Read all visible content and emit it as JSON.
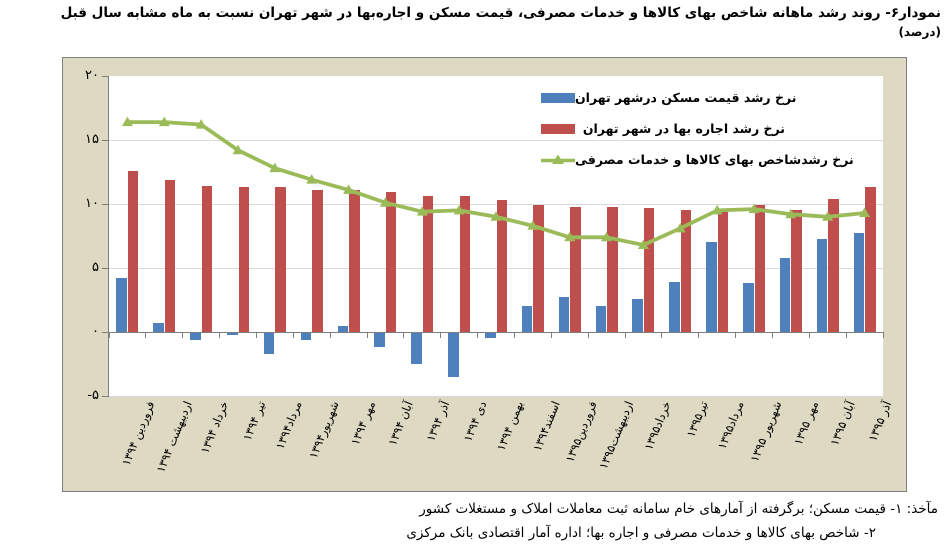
{
  "title": {
    "main": "نمودار۶- روند رشد ماهانه شاخص بهای کالاها و خدمات مصرفی، قیمت مسکن و اجاره‌بها در شهر تهران نسبت به ماه مشابه سال قبل ",
    "unit": "(درصد)"
  },
  "footnotes": {
    "line1": "مآخذ: ۱- قیمت مسکن؛ برگرفته از آمارهای خام سامانه ثبت معاملات املاک و مستغلات کشور",
    "line2": "۲- شاخص بهای کالاها و خدمات مصرفی و اجاره بها؛ اداره آمار اقتصادی بانک مرکزی"
  },
  "colors": {
    "chart_background": "#ddd9c3",
    "plot_background": "#ffffff",
    "frame_border": "#7f7f7f",
    "gridline": "#d9d9d9",
    "axis_line": "#7f7f7f",
    "house_price_bar": "#4e80bc",
    "rent_bar": "#bf4f4c",
    "cpi_line": "#9bbb59"
  },
  "y_axis": {
    "tick_labels": [
      "۲۰",
      "۱۵",
      "۱۰",
      "۵",
      "۰",
      "-۵"
    ],
    "tick_values": [
      20,
      15,
      10,
      5,
      0,
      -5
    ]
  },
  "chart_data": {
    "type": "bar",
    "subtype": "grouped bars + line overlay",
    "title": "نمودار۶- روند رشد ماهانه شاخص بهای کالاها و خدمات مصرفی، قیمت مسکن و اجاره‌بها در شهر تهران نسبت به ماه مشابه سال قبل (درصد)",
    "xlabel": "",
    "ylabel": "",
    "ylim": [
      -5,
      20
    ],
    "ytick_step": 5,
    "grid": true,
    "legend_position": "inside-top-right",
    "categories": [
      "فروردین ۱۳۹۴",
      "اردیبهشت ۱۳۹۴",
      "خرداد ۱۳۹۴",
      "تیر ۱۳۹۴",
      "مرداد۱۳۹۴",
      "شهریور۱۳۹۴",
      "مهر ۱۳۹۴",
      "آبان ۱۳۹۴",
      "آذر ۱۳۹۴",
      "دی ۱۳۹۴",
      "بهمن ۱۳۹۴",
      "اسفند۱۳۹۴",
      "فروردین۱۳۹۵",
      "اردیبهشت۱۳۹۵",
      "خرداد۱۳۹۵",
      "تیر۱۳۹۵",
      "مرداد۱۳۹۵",
      "شهریور ۱۳۹۵",
      "مهر ۱۳۹۵",
      "آبان ۱۳۹۵",
      "آذر ۱۳۹۵"
    ],
    "series": [
      {
        "name": "نرخ رشد قیمت مسکن  درشهر تهران",
        "type": "bar",
        "color": "#4e80bc",
        "values": [
          4.2,
          0.7,
          -0.6,
          -0.2,
          -1.7,
          -0.6,
          0.5,
          -1.2,
          -2.5,
          -3.5,
          -0.5,
          2.0,
          2.7,
          2.0,
          2.6,
          3.9,
          7.0,
          3.8,
          5.8,
          7.3,
          7.7
        ]
      },
      {
        "name": "نرخ رشد اجاره بها در شهر تهران",
        "type": "bar",
        "color": "#bf4f4c",
        "values": [
          12.6,
          11.9,
          11.4,
          11.3,
          11.3,
          11.1,
          11.1,
          10.9,
          10.6,
          10.6,
          10.3,
          9.9,
          9.8,
          9.8,
          9.7,
          9.5,
          9.4,
          9.9,
          9.5,
          10.4,
          11.3
        ]
      },
      {
        "name": "نرخ رشدشاخص بهای کالاها و خدمات مصرفی",
        "type": "line",
        "marker": "triangle-up",
        "color": "#9bbb59",
        "values": [
          16.4,
          16.4,
          16.2,
          14.2,
          12.8,
          11.9,
          11.1,
          10.1,
          9.4,
          9.5,
          9.0,
          8.3,
          7.4,
          7.4,
          6.8,
          8.1,
          9.5,
          9.6,
          9.2,
          9.0,
          9.3
        ]
      }
    ]
  }
}
